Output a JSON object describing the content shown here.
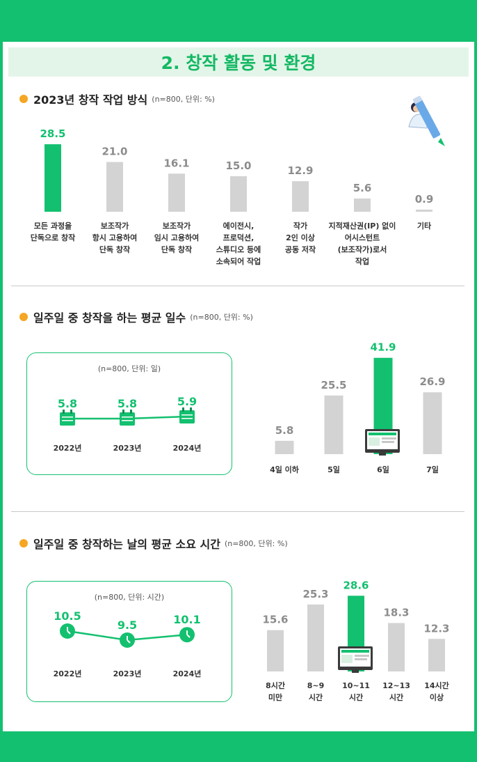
{
  "page_title": "2. 창작 활동 및 환경",
  "sections": [
    {
      "title": "2023년 창작 작업 방식",
      "note": "(n=800, 단위: %)"
    },
    {
      "title": "일주일 중 창작을 하는 평균 일수",
      "note": "(n=800, 단위: %)"
    },
    {
      "title": "일주일 중 창작하는 날의 평균 소요 시간",
      "note": "(n=800, 단위: %)"
    }
  ],
  "colors": {
    "highlight": "#13c06f",
    "bar": "#d3d3d3",
    "value_gray": "#8c8c8c",
    "accent_dot": "#f5a623"
  },
  "chart_data": [
    {
      "type": "bar",
      "title": "2023년 창작 작업 방식",
      "categories": [
        [
          "모든 과정을",
          "단독으로 창작"
        ],
        [
          "보조작가",
          "항시 고용하여",
          "단독 창작"
        ],
        [
          "보조작가",
          "임시 고용하여",
          "단독 창작"
        ],
        [
          "에이전시,",
          "프로덕션,",
          "스튜디오 등에",
          "소속되어 작업"
        ],
        [
          "작가",
          "2인 이상",
          "공동 저작"
        ],
        [
          "지적재산권(IP) 없이",
          "어시스턴트",
          "(보조작가)로서",
          "작업"
        ],
        [
          "기타"
        ]
      ],
      "values": [
        28.5,
        21.0,
        16.1,
        15.0,
        12.9,
        5.6,
        0.9
      ],
      "value_labels": [
        "28.5",
        "21.0",
        "16.1",
        "15.0",
        "12.9",
        "5.6",
        "0.9"
      ],
      "highlight_index": 0
    },
    {
      "type": "line",
      "note": "(n=800, 단위: 일)",
      "categories": [
        "2022년",
        "2023년",
        "2024년"
      ],
      "values": [
        5.8,
        5.8,
        5.9
      ],
      "value_labels": [
        "5.8",
        "5.8",
        "5.9"
      ],
      "marker": "calendar-icon"
    },
    {
      "type": "bar",
      "categories": [
        [
          "4일 이하"
        ],
        [
          "5일"
        ],
        [
          "6일"
        ],
        [
          "7일"
        ]
      ],
      "values": [
        5.8,
        25.5,
        41.9,
        26.9
      ],
      "value_labels": [
        "5.8",
        "25.5",
        "41.9",
        "26.9"
      ],
      "highlight_index": 2
    },
    {
      "type": "line",
      "note": "(n=800, 단위: 시간)",
      "categories": [
        "2022년",
        "2023년",
        "2024년"
      ],
      "values": [
        10.5,
        9.5,
        10.1
      ],
      "value_labels": [
        "10.5",
        "9.5",
        "10.1"
      ],
      "marker": "clock-icon"
    },
    {
      "type": "bar",
      "categories": [
        [
          "8시간",
          "미만"
        ],
        [
          "8~9",
          "시간"
        ],
        [
          "10~11",
          "시간"
        ],
        [
          "12~13",
          "시간"
        ],
        [
          "14시간",
          "이상"
        ]
      ],
      "values": [
        15.6,
        25.3,
        28.6,
        18.3,
        12.3
      ],
      "value_labels": [
        "15.6",
        "25.3",
        "28.6",
        "18.3",
        "12.3"
      ],
      "highlight_index": 2
    }
  ]
}
